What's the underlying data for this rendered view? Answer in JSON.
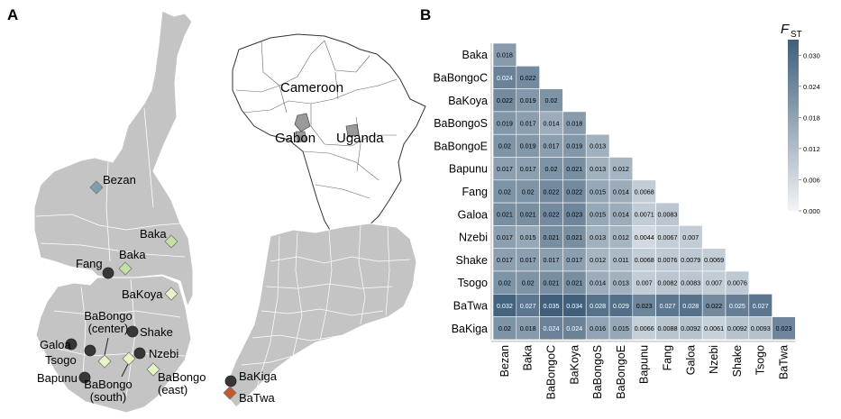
{
  "panel_a": {
    "label": "A",
    "inset_labels": {
      "cameroon": "Cameroon",
      "gabon": "Gabon",
      "uganda": "Uganda"
    },
    "populations": [
      {
        "name": "Bezan",
        "text": "Bezan",
        "shape": "diamond",
        "color": "#7f9fae"
      },
      {
        "name": "Baka-east",
        "text": "Baka",
        "shape": "diamond",
        "color": "#c3e0a6"
      },
      {
        "name": "Baka-west",
        "text": "Baka",
        "shape": "diamond",
        "color": "#c3e0a6"
      },
      {
        "name": "Fang",
        "text": "Fang",
        "shape": "circle",
        "color": "#3a3537"
      },
      {
        "name": "BaKoya",
        "text": "BaKoya",
        "shape": "diamond",
        "color": "#e6f5c8"
      },
      {
        "name": "BaBongo-center",
        "text": "BaBongo",
        "text2": "(center)",
        "shape": "diamond",
        "color": "#e6f5c8"
      },
      {
        "name": "Shake",
        "text": "Shake",
        "shape": "circle",
        "color": "#3a3537"
      },
      {
        "name": "Galoa",
        "text": "Galoa",
        "shape": "circle",
        "color": "#3a3537"
      },
      {
        "name": "Tsogo",
        "text": "Tsogo",
        "shape": "circle",
        "color": "#3a3537"
      },
      {
        "name": "Nzebi",
        "text": "Nzebi",
        "shape": "circle",
        "color": "#3a3537"
      },
      {
        "name": "Bapunu",
        "text": "Bapunu",
        "shape": "circle",
        "color": "#3a3537"
      },
      {
        "name": "BaBongo-south",
        "text": "BaBongo",
        "text2": "(south)",
        "shape": "diamond",
        "color": "#e6f5c8"
      },
      {
        "name": "BaBongo-east",
        "text": "BaBongo",
        "text2": "(east)",
        "shape": "diamond",
        "color": "#e6f5c8"
      },
      {
        "name": "BaKiga",
        "text": "BaKiga",
        "shape": "circle",
        "color": "#3a3537"
      },
      {
        "name": "BaTwa",
        "text": "BaTwa",
        "shape": "diamond",
        "color": "#c25a2c"
      }
    ]
  },
  "chart_data": {
    "type": "heatmap",
    "panel_label": "B",
    "title": "",
    "legend_title": "F",
    "legend_subscript": "ST",
    "legend_ticks": [
      "0.030",
      "0.024",
      "0.018",
      "0.012",
      "0.006",
      "0.000"
    ],
    "legend_range": [
      0,
      0.033
    ],
    "colors": {
      "low": "#f2f4f6",
      "high": "#3f5f7b"
    },
    "row_labels": [
      "Baka",
      "BaBongoC",
      "BaKoya",
      "BaBongoS",
      "BaBongoE",
      "Bapunu",
      "Fang",
      "Galoa",
      "Nzebi",
      "Shake",
      "Tsogo",
      "BaTwa",
      "BaKiga"
    ],
    "col_labels": [
      "Bezan",
      "Baka",
      "BaBongoC",
      "BaKoya",
      "BaBongoS",
      "BaBongoE",
      "Bapunu",
      "Fang",
      "Galoa",
      "Nzebi",
      "Shake",
      "Tsogo",
      "BaTwa"
    ],
    "values": [
      [
        "0.018"
      ],
      [
        "0.024",
        "0.022"
      ],
      [
        "0.022",
        "0.019",
        "0.02"
      ],
      [
        "0.019",
        "0.017",
        "0.014",
        "0.018"
      ],
      [
        "0.02",
        "0.019",
        "0.017",
        "0.019",
        "0.013"
      ],
      [
        "0.017",
        "0.017",
        "0.02",
        "0.021",
        "0.013",
        "0.012"
      ],
      [
        "0.02",
        "0.02",
        "0.022",
        "0.022",
        "0.015",
        "0.014",
        "0.0068"
      ],
      [
        "0.021",
        "0.021",
        "0.022",
        "0.023",
        "0.015",
        "0.014",
        "0.0071",
        "0.0083"
      ],
      [
        "0.017",
        "0.015",
        "0.021",
        "0.021",
        "0.013",
        "0.012",
        "0.0044",
        "0.0067",
        "0.007"
      ],
      [
        "0.017",
        "0.017",
        "0.017",
        "0.017",
        "0.012",
        "0.011",
        "0.0068",
        "0.0076",
        "0.0079",
        "0.0069"
      ],
      [
        "0.02",
        "0.02",
        "0.021",
        "0.021",
        "0.014",
        "0.013",
        "0.007",
        "0.0082",
        "0.0083",
        "0.007",
        "0.0076"
      ],
      [
        "0.032",
        "0.027",
        "0.035",
        "0.034",
        "0.028",
        "0.029",
        "0.023",
        "0.027",
        "0.028",
        "0.022",
        "0.025",
        "0.027"
      ],
      [
        "0.02",
        "0.018",
        "0.024",
        "0.024",
        "0.016",
        "0.015",
        "0.0066",
        "0.0088",
        "0.0092",
        "0.0061",
        "0.0092",
        "0.0093",
        "0.023"
      ]
    ]
  }
}
